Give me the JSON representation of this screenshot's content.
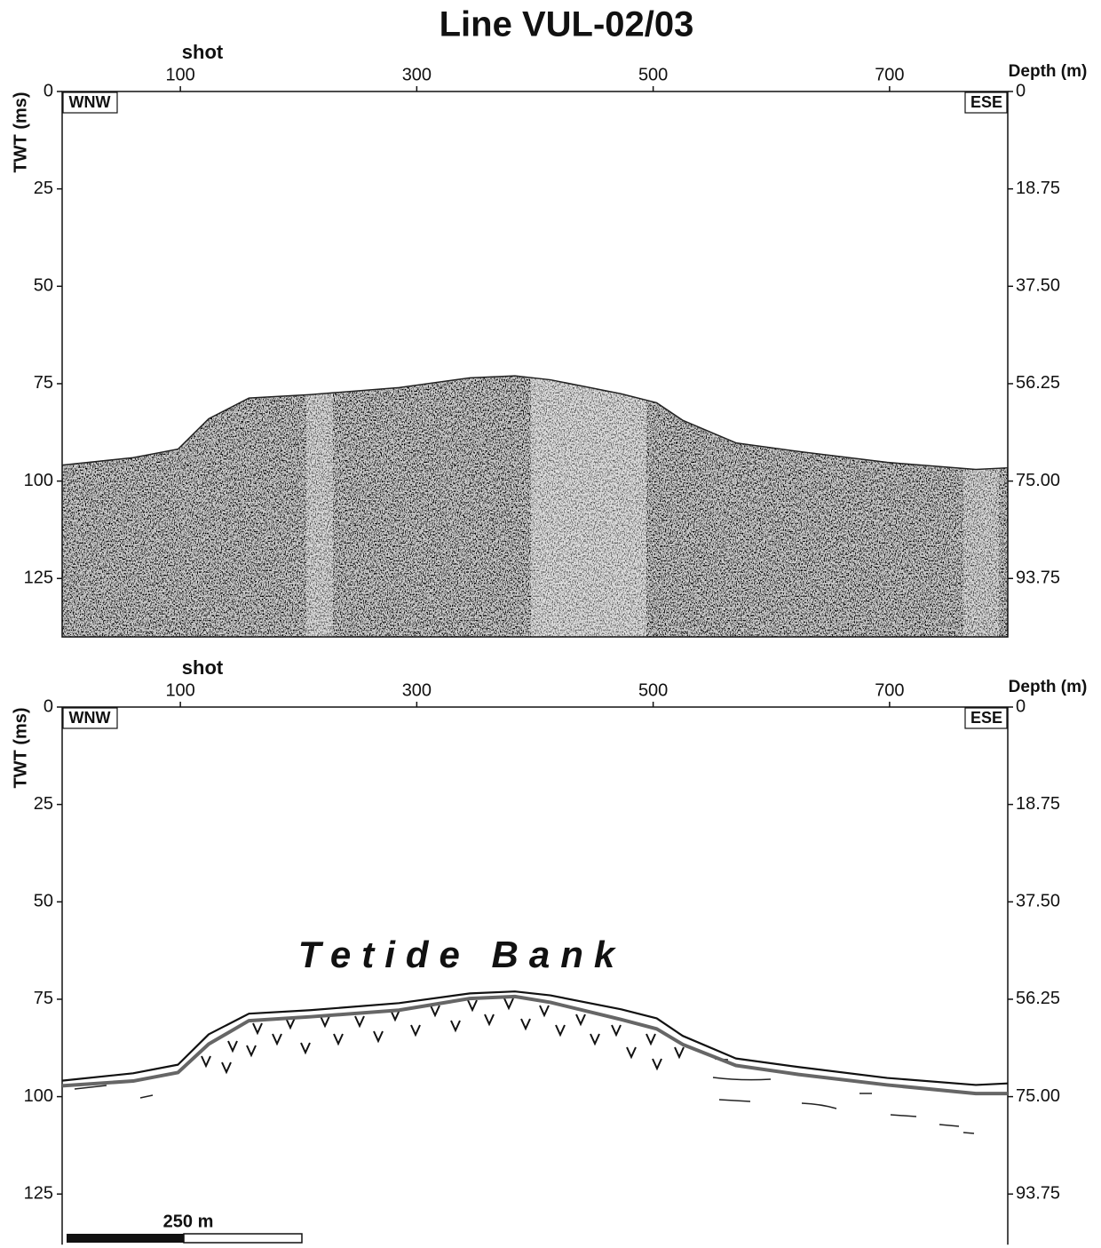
{
  "title": "Line VUL-02/03",
  "chart_data": [
    {
      "type": "seismic",
      "xlabel": "shot",
      "ylabel": "TWT (ms)",
      "y2label": "Depth (m)",
      "left_label": "WNW",
      "right_label": "ESE",
      "xlim": [
        0,
        800
      ],
      "xticks": [
        100,
        300,
        500,
        700
      ],
      "ylim": [
        0,
        140
      ],
      "yticks": [
        0,
        25,
        50,
        75,
        100,
        125
      ],
      "y2lim": [
        0,
        105
      ],
      "y2ticks": [
        0,
        {
          "value": 18.75,
          "label": "18.75"
        },
        {
          "value": 37.5,
          "label": "37.50"
        },
        {
          "value": 56.25,
          "label": "56.25"
        },
        {
          "value": 75,
          "label": "75.00"
        },
        {
          "value": 93.75,
          "label": "93.75"
        }
      ],
      "series": [
        {
          "color": "#222222",
          "x": [
            0,
            60,
            98,
            124,
            158,
            210,
            285,
            345,
            383,
            413,
            473,
            503,
            525,
            570,
            623,
            698,
            773,
            800
          ],
          "values": [
            95.9,
            94,
            91.8,
            84,
            78.7,
            77.8,
            76,
            73.5,
            73,
            74,
            77.6,
            79.9,
            84.4,
            90.2,
            92.4,
            95.2,
            97,
            96.6
          ]
        }
      ]
    },
    {
      "type": "line",
      "xlabel": "shot",
      "ylabel": "TWT (ms)",
      "y2label": "Depth (m)",
      "left_label": "WNW",
      "right_label": "ESE",
      "annotation": "Tetide Bank",
      "scale_bar": "250 m",
      "xlim": [
        0,
        800
      ],
      "xticks": [
        100,
        300,
        500,
        700
      ],
      "ylim": [
        0,
        138
      ],
      "yticks": [
        0,
        25,
        50,
        75,
        100,
        125
      ],
      "y2lim": [
        0,
        103.5
      ],
      "y2ticks": [
        0,
        {
          "value": 18.75,
          "label": "18.75"
        },
        {
          "value": 37.5,
          "label": "37.50"
        },
        {
          "value": 56.25,
          "label": "56.25"
        },
        {
          "value": 75,
          "label": "75.00"
        },
        {
          "value": 93.75,
          "label": "93.75"
        }
      ],
      "series": [
        {
          "color": "#111111",
          "x": [
            0,
            60,
            98,
            124,
            158,
            210,
            285,
            345,
            383,
            413,
            473,
            503,
            525,
            570,
            623,
            698,
            773,
            800
          ],
          "values": [
            95.9,
            94,
            91.8,
            84,
            78.7,
            77.8,
            76,
            73.5,
            73,
            74,
            77.6,
            79.9,
            84.4,
            90.2,
            92.4,
            95.2,
            97,
            96.6
          ]
        },
        {
          "color": "#666666",
          "x": [
            0,
            60,
            98,
            124,
            158,
            210,
            285,
            345,
            383,
            413,
            473,
            503,
            525,
            570,
            623,
            698,
            773,
            800
          ],
          "values": [
            97.2,
            96,
            93.8,
            86.5,
            80.5,
            79.5,
            77.8,
            74.8,
            74.3,
            75.8,
            80.2,
            82.6,
            86.6,
            92,
            94.3,
            97,
            99.2,
            99.2
          ]
        }
      ]
    }
  ]
}
